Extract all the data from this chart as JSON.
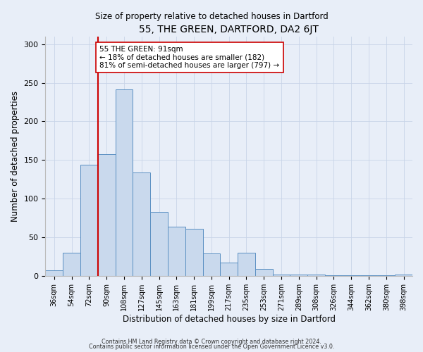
{
  "title": "55, THE GREEN, DARTFORD, DA2 6JT",
  "subtitle": "Size of property relative to detached houses in Dartford",
  "xlabel": "Distribution of detached houses by size in Dartford",
  "ylabel": "Number of detached properties",
  "bar_labels": [
    "36sqm",
    "54sqm",
    "72sqm",
    "90sqm",
    "108sqm",
    "127sqm",
    "145sqm",
    "163sqm",
    "181sqm",
    "199sqm",
    "217sqm",
    "235sqm",
    "253sqm",
    "271sqm",
    "289sqm",
    "308sqm",
    "326sqm",
    "344sqm",
    "362sqm",
    "380sqm",
    "398sqm"
  ],
  "bar_values": [
    8,
    30,
    144,
    158,
    241,
    134,
    83,
    64,
    61,
    29,
    18,
    30,
    9,
    2,
    2,
    2,
    1,
    1,
    1,
    1,
    2
  ],
  "bar_color": "#c9d9ed",
  "bar_edge_color": "#5a8fc2",
  "vline_x_index": 3,
  "vline_color": "#cc0000",
  "annotation_text": "55 THE GREEN: 91sqm\n← 18% of detached houses are smaller (182)\n81% of semi-detached houses are larger (797) →",
  "annotation_box_color": "#ffffff",
  "annotation_box_edge": "#cc0000",
  "ylim": [
    0,
    310
  ],
  "yticks": [
    0,
    50,
    100,
    150,
    200,
    250,
    300
  ],
  "footer1": "Contains HM Land Registry data © Crown copyright and database right 2024.",
  "footer2": "Contains public sector information licensed under the Open Government Licence v3.0.",
  "background_color": "#e8eef8",
  "plot_bg_color": "#e8eef8"
}
